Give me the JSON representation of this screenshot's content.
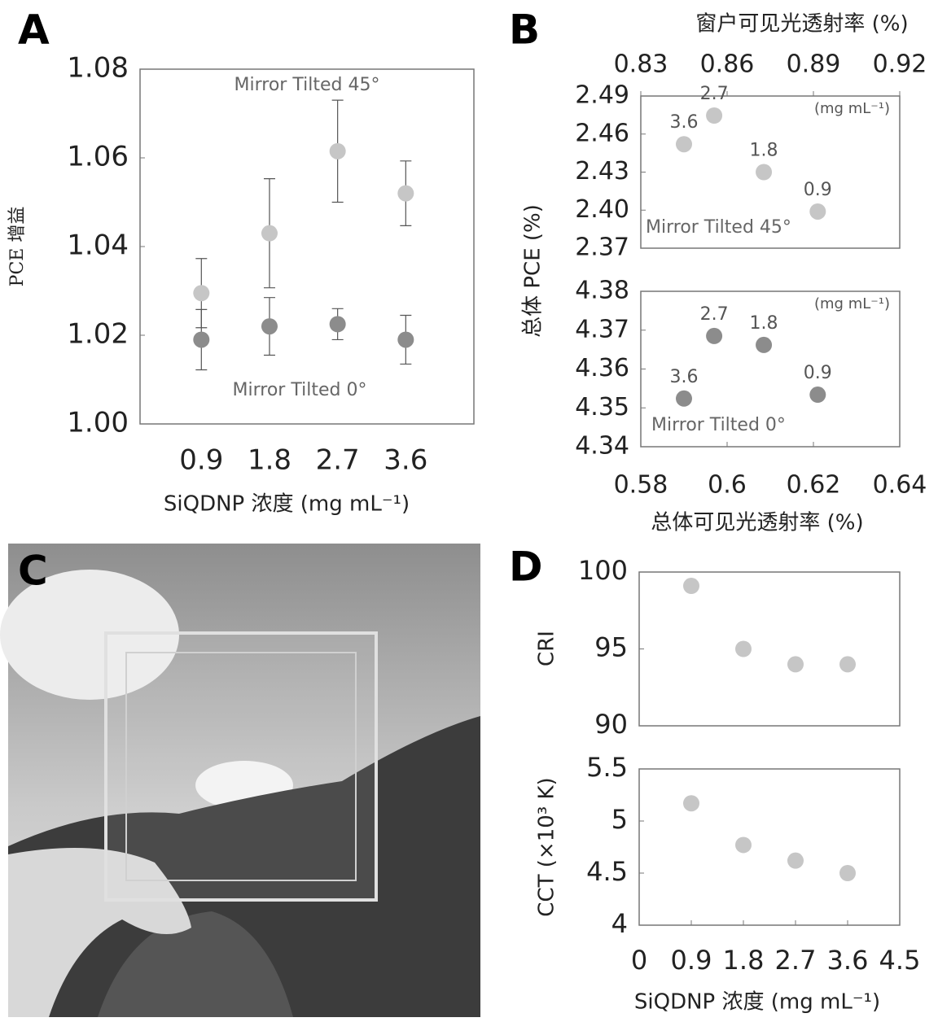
{
  "photo": {
    "panel": "C"
  },
  "chart_data": [
    {
      "panel": "A",
      "type": "scatter",
      "ylabel": "PCE 增益",
      "xlabel": "SiQDNP 浓度 (mg mL⁻¹)",
      "categories": [
        "0.9",
        "1.8",
        "2.7",
        "3.6"
      ],
      "ylim": [
        1,
        1.08
      ],
      "yticks": [
        {
          "value": 1,
          "label": "1.00"
        },
        1.02,
        1.04,
        1.06,
        1.08
      ],
      "series": [
        {
          "name": "Mirror Tilted 45°",
          "color": "#c6c6c6",
          "values": [
            1.0295,
            1.043,
            1.0615,
            1.052
          ],
          "errors": [
            0.0078,
            0.0123,
            0.0115,
            0.0073
          ]
        },
        {
          "name": "Mirror Tilted 0°",
          "color": "#8c8c8c",
          "values": [
            1.019,
            1.022,
            1.0225,
            1.019
          ],
          "errors": [
            0.0068,
            0.0065,
            0.0035,
            0.0055
          ]
        }
      ]
    },
    {
      "panel": "B",
      "type": "scatter",
      "ylabel": "总体 PCE (%)",
      "x2label": "窗户可见光透射率 (%)",
      "x2lim": [
        0.83,
        0.92
      ],
      "x2ticks": [
        0.83,
        0.86,
        0.89,
        0.92
      ],
      "xlim": [
        0.58,
        0.64
      ],
      "ylim": [
        2.37,
        2.49
      ],
      "yticks": [
        2.37,
        {
          "value": 2.4,
          "label": "2.40"
        },
        2.43,
        2.46,
        2.49
      ],
      "annotation": "(mg mL⁻¹)",
      "series": [
        {
          "name": "Mirror Tilted 45°",
          "color": "#c6c6c6",
          "x": [
            0.59,
            0.597,
            0.6085,
            0.621
          ],
          "values": [
            2.452,
            2.4746,
            2.43,
            2.3989
          ],
          "labels": [
            "3.6",
            "2.7",
            "1.8",
            "0.9"
          ]
        }
      ]
    },
    {
      "type": "scatter",
      "xlabel": "总体可见光透射率 (%)",
      "xlim": [
        0.58,
        0.64
      ],
      "xticks": [
        0.58,
        0.6,
        0.62,
        0.64
      ],
      "ylim": [
        4.34,
        4.38
      ],
      "yticks": [
        4.34,
        4.35,
        4.36,
        4.37,
        4.38
      ],
      "annotation": "(mg mL⁻¹)",
      "series": [
        {
          "name": "Mirror Tilted 0°",
          "color": "#8c8c8c",
          "x": [
            0.59,
            0.597,
            0.6085,
            0.621
          ],
          "values": [
            4.3524,
            4.3685,
            4.3662,
            4.3534
          ],
          "labels": [
            "3.6",
            "2.7",
            "1.8",
            "0.9"
          ]
        }
      ]
    },
    {
      "panel": "D",
      "type": "scatter",
      "ylabel": "CRI",
      "xlim": [
        0,
        4.5
      ],
      "ylim": [
        90,
        100
      ],
      "yticks": [
        90,
        95,
        100
      ],
      "series": [
        {
          "color": "#c6c6c6",
          "x": [
            0.9,
            1.8,
            2.7,
            3.6
          ],
          "values": [
            99.1,
            95,
            94,
            94
          ]
        }
      ]
    },
    {
      "type": "scatter",
      "ylabel": "CCT (×10³ K)",
      "xlabel": "SiQDNP 浓度 (mg mL⁻¹)",
      "xlim": [
        0,
        4.5
      ],
      "xticks": [
        0,
        0.9,
        1.8,
        2.7,
        3.6,
        4.5
      ],
      "ylim": [
        4,
        5.5
      ],
      "yticks": [
        4,
        4.5,
        5,
        5.5
      ],
      "series": [
        {
          "color": "#c6c6c6",
          "x": [
            0.9,
            1.8,
            2.7,
            3.6
          ],
          "values": [
            5.17,
            4.77,
            4.62,
            4.5
          ]
        }
      ]
    }
  ]
}
